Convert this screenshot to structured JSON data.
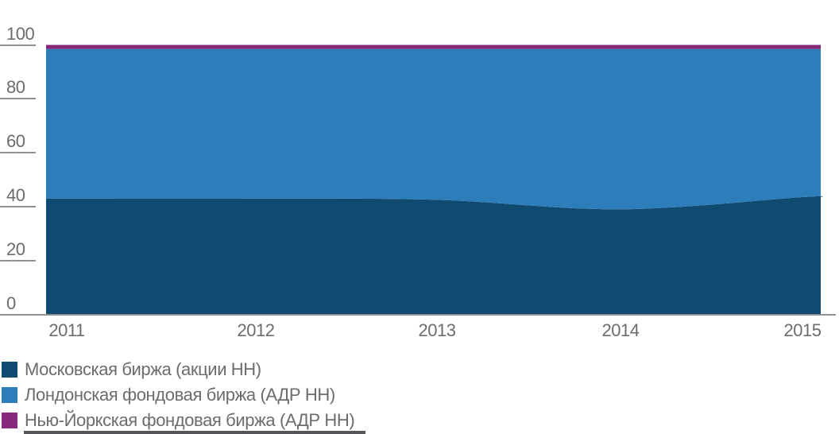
{
  "chart_data": {
    "type": "area",
    "stacked": true,
    "stack_total": 100,
    "title": "",
    "categories": [
      "2011",
      "2012",
      "2013",
      "2014",
      "2015"
    ],
    "series": [
      {
        "name": "Московская биржа (акции НН)",
        "color": "#0f4a71",
        "values": [
          43,
          43,
          42.5,
          39,
          43.5
        ]
      },
      {
        "name": "Лондонская фондовая биржа (АДР НН)",
        "color": "#2e7dbb",
        "values": [
          55.5,
          55.5,
          56,
          59.5,
          55
        ]
      },
      {
        "name": "Нью-Йоркская фондовая биржа (АДР НН)",
        "color": "#87297b",
        "values": [
          1.5,
          1.5,
          1.5,
          1.5,
          1.5
        ]
      }
    ],
    "xlabel": "",
    "ylabel": "",
    "ylim": [
      0,
      100
    ],
    "y_ticks": [
      0,
      20,
      40,
      60,
      80,
      100
    ],
    "grid": "short tick stubs left of plot, full-width baseline",
    "legend_position": "bottom-left"
  },
  "colors": {
    "background": "#ffffff",
    "axis_line": "#8f9194",
    "tick_label": "#6b6c6e",
    "legend_text": "#6b6c6e"
  }
}
